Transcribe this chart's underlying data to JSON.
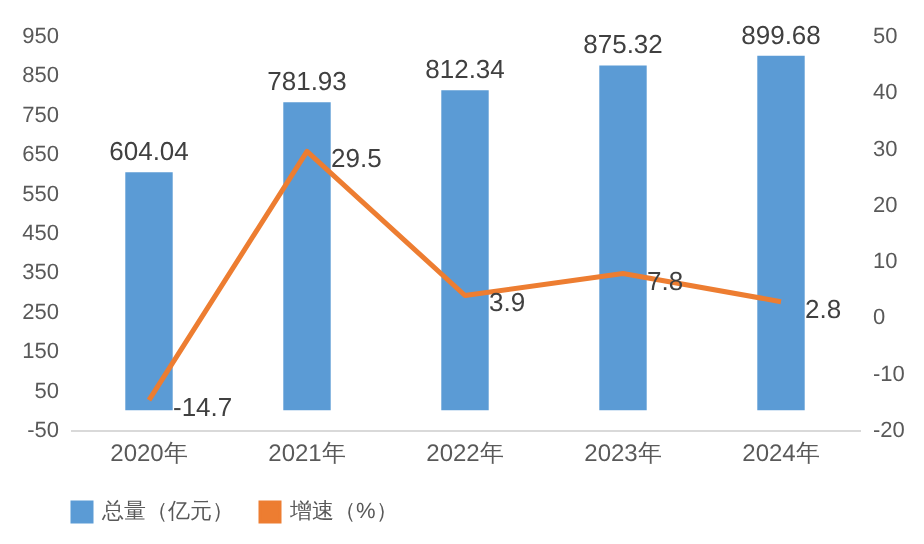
{
  "chart_data": {
    "type": "bar",
    "categories": [
      "2020年",
      "2021年",
      "2022年",
      "2023年",
      "2024年"
    ],
    "series": [
      {
        "name": "总量（亿元）",
        "color": "#5b9bd5",
        "values": [
          604.04,
          781.93,
          812.34,
          875.32,
          899.68
        ]
      },
      {
        "name": "增速（%）",
        "type": "line",
        "axis": "y2",
        "color": "#ed7d31",
        "values": [
          -14.7,
          29.5,
          3.9,
          7.8,
          2.8
        ]
      }
    ],
    "ylim": [
      -50,
      950
    ],
    "yticks": [
      -50,
      50,
      150,
      250,
      350,
      450,
      550,
      650,
      750,
      850,
      950
    ],
    "y2lim": [
      -20,
      50
    ],
    "y2ticks": [
      -20,
      -10,
      0,
      10,
      20,
      30,
      40,
      50
    ],
    "data_labels": true,
    "legend": "bottom",
    "grid": false
  }
}
